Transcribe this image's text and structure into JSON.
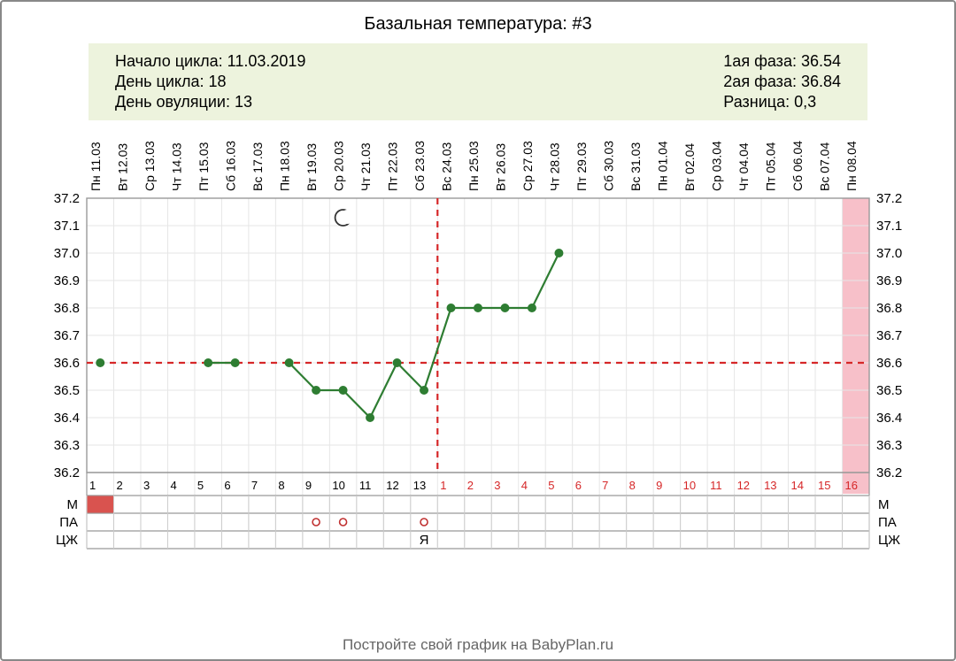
{
  "title": "Базальная температура: #3",
  "info": {
    "left": {
      "cycle_start_label": "Начало цикла: 11.03.2019",
      "cycle_day_label": "День цикла: 18",
      "ovulation_day_label": "День овуляции: 13"
    },
    "right": {
      "phase1_label": "1ая фаза: 36.54",
      "phase2_label": "2ая фаза: 36.84",
      "diff_label": "Разница: 0,3"
    }
  },
  "footer": "Постройте свой график на BabyPlan.ru",
  "chart": {
    "type": "line",
    "background_color": "#ffffff",
    "grid_color_minor": "#e6e6e6",
    "grid_color_major": "#cccccc",
    "axis_color": "#999999",
    "text_color": "#000000",
    "days": 29,
    "date_labels": [
      "Пн 11.03",
      "Вт 12.03",
      "Ср 13.03",
      "Чт 14.03",
      "Пт 15.03",
      "Сб 16.03",
      "Вс 17.03",
      "Пн 18.03",
      "Вт 19.03",
      "Ср 20.03",
      "Чт 21.03",
      "Пт 22.03",
      "Сб 23.03",
      "Вс 24.03",
      "Пн 25.03",
      "Вт 26.03",
      "Ср 27.03",
      "Чт 28.03",
      "Пт 29.03",
      "Сб 30.03",
      "Вс 31.03",
      "Пн 01.04",
      "Вт 02.04",
      "Ср 03.04",
      "Чт 04.04",
      "Пт 05.04",
      "Сб 06.04",
      "Вс 07.04",
      "Пн 08.04"
    ],
    "y_labels": [
      "37.2",
      "37.1",
      "37.0",
      "36.9",
      "36.8",
      "36.7",
      "36.6",
      "36.5",
      "36.4",
      "36.3",
      "36.2"
    ],
    "y_max": 37.2,
    "y_min": 36.2,
    "y_step": 0.1,
    "coverline_value": 36.6,
    "coverline_color": "#d62728",
    "ovulation_day": 13,
    "ovulation_line_color": "#d62728",
    "pink_band_day": 29,
    "pink_band_color": "#f7c0c9",
    "series_color": "#2e7d32",
    "marker_radius": 4.5,
    "line_width": 2.2,
    "temps": [
      36.6,
      null,
      null,
      null,
      36.6,
      36.6,
      null,
      36.6,
      36.5,
      36.5,
      36.4,
      36.6,
      36.5,
      36.8,
      36.8,
      36.8,
      36.8,
      37.0,
      null,
      null,
      null,
      null,
      null,
      null,
      null,
      null,
      null,
      null,
      null
    ],
    "moon_day": 10,
    "day_number_color_pre": "#000000",
    "day_number_color_post": "#d62728",
    "row_labels_left": [
      "М",
      "ПА",
      "ЦЖ"
    ],
    "row_labels_right": [
      "М",
      "ПА",
      "ЦЖ"
    ],
    "m_row_color": "#d9534f",
    "pa_marks_days": [
      9,
      10,
      13
    ],
    "pa_mark_color": "#c03030",
    "cz_label_day": 13,
    "cz_text": "Я",
    "font_family": "Arial",
    "date_fontsize": 14,
    "axis_fontsize": 15,
    "daynum_fontsize": 13,
    "rowlabel_fontsize": 15
  }
}
